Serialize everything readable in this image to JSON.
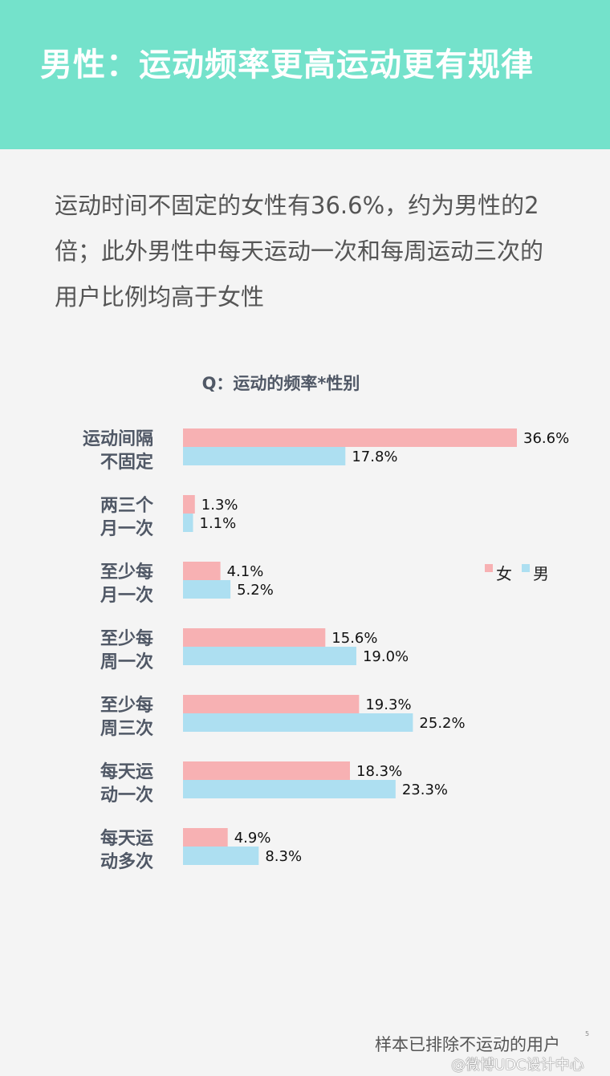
{
  "header": {
    "title": "男性：运动频率更高运动更有规律"
  },
  "description": [
    "运动时间不固定的女性有36.6%，约为男性的2",
    "倍；此外男性中每天运动一次和每周运动三次的",
    "用户比例均高于女性"
  ],
  "footnote": "样本已排除不运动的用户",
  "footnote_mark": "5",
  "watermark": "@微博UDC设计中心",
  "colors": {
    "header_bg": "#74e2cb",
    "female": "#f7b1b3",
    "male": "#addff1",
    "category_text": "#505866"
  },
  "chart_data": {
    "type": "bar",
    "orientation": "horizontal",
    "title": "Q：运动的频率*性别",
    "categories": [
      [
        "运动间隔",
        "不固定"
      ],
      [
        "两三个",
        "月一次"
      ],
      [
        "至少每",
        "月一次"
      ],
      [
        "至少每",
        "周一次"
      ],
      [
        "至少每",
        "周三次"
      ],
      [
        "每天运",
        "动一次"
      ],
      [
        "每天运",
        "动多次"
      ]
    ],
    "series": [
      {
        "name": "女",
        "color": "#f7b1b3",
        "values": [
          36.6,
          1.3,
          4.1,
          15.6,
          19.3,
          18.3,
          4.9
        ]
      },
      {
        "name": "男",
        "color": "#addff1",
        "values": [
          17.8,
          1.1,
          5.2,
          19.0,
          25.2,
          23.3,
          8.3
        ]
      }
    ],
    "value_suffix": "%",
    "legend_position": "right",
    "grid": false,
    "xlim": [
      0,
      36.6
    ]
  }
}
